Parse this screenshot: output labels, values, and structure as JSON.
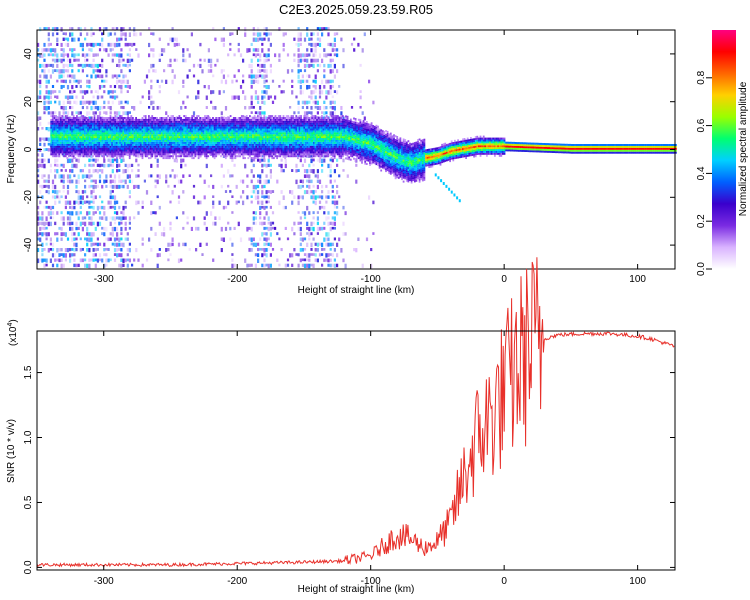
{
  "title": "C2E3.2025.059.23.59.R05",
  "chart_data": [
    {
      "type": "heatmap",
      "xlabel": "Height of straight line (km)",
      "ylabel": "Frequency (Hz)",
      "xlim": [
        -350,
        128
      ],
      "ylim": [
        -50,
        50
      ],
      "xticks": [
        -300,
        -200,
        -100,
        0,
        100
      ],
      "yticks": [
        -40,
        -20,
        0,
        20,
        40
      ],
      "colorbar": {
        "label": "Normalized spectral amplitude",
        "ticks": [
          "0.0",
          "0.2",
          "0.4",
          "0.6",
          "0.8"
        ],
        "range": [
          0,
          1
        ],
        "colors": [
          "#ffffff",
          "#d9b3ff",
          "#7a2be2",
          "#3a00cc",
          "#0060ff",
          "#00d0ff",
          "#00ff70",
          "#9aff00",
          "#ffd000",
          "#ff6600",
          "#ff0000",
          "#ff0080"
        ]
      },
      "ridge": {
        "x": [
          -340,
          -300,
          -250,
          -200,
          -150,
          -120,
          -100,
          -80,
          -70,
          -60,
          -50,
          -40,
          -30,
          -20,
          -10,
          0,
          50,
          128
        ],
        "frequency": [
          5,
          5,
          5,
          5,
          5,
          5,
          2,
          -4,
          -6,
          -4,
          -3,
          -1,
          0,
          1,
          1,
          1,
          0,
          0
        ]
      },
      "noise_bands": [
        [
          -350,
          -280
        ],
        [
          -190,
          -175
        ],
        [
          -155,
          -125
        ]
      ],
      "grid": false
    },
    {
      "type": "line",
      "xlabel": "Height of straight line (km)",
      "ylabel": "SNR (10 * v/v)",
      "multiplier": "(x10",
      "multiplier_exp": "4",
      "multiplier_close": ")",
      "xlim": [
        -350,
        128
      ],
      "ylim": [
        -0.02,
        1.82
      ],
      "xticks": [
        -300,
        -200,
        -100,
        0,
        100
      ],
      "yticks": [
        "0.0",
        "0.5",
        "1.0",
        "1.5"
      ],
      "series": [
        {
          "color": "#e8302a",
          "x": [
            -350,
            -300,
            -250,
            -200,
            -150,
            -120,
            -100,
            -90,
            -80,
            -70,
            -60,
            -50,
            -40,
            -30,
            -20,
            -10,
            0,
            10,
            20,
            30,
            40,
            60,
            80,
            100,
            110,
            128
          ],
          "values": [
            0.02,
            0.02,
            0.02,
            0.03,
            0.04,
            0.05,
            0.09,
            0.17,
            0.25,
            0.22,
            0.15,
            0.2,
            0.35,
            0.7,
            1.0,
            1.15,
            1.35,
            1.55,
            1.7,
            1.76,
            1.79,
            1.8,
            1.8,
            1.78,
            1.76,
            1.7
          ]
        }
      ],
      "grid": false
    }
  ]
}
